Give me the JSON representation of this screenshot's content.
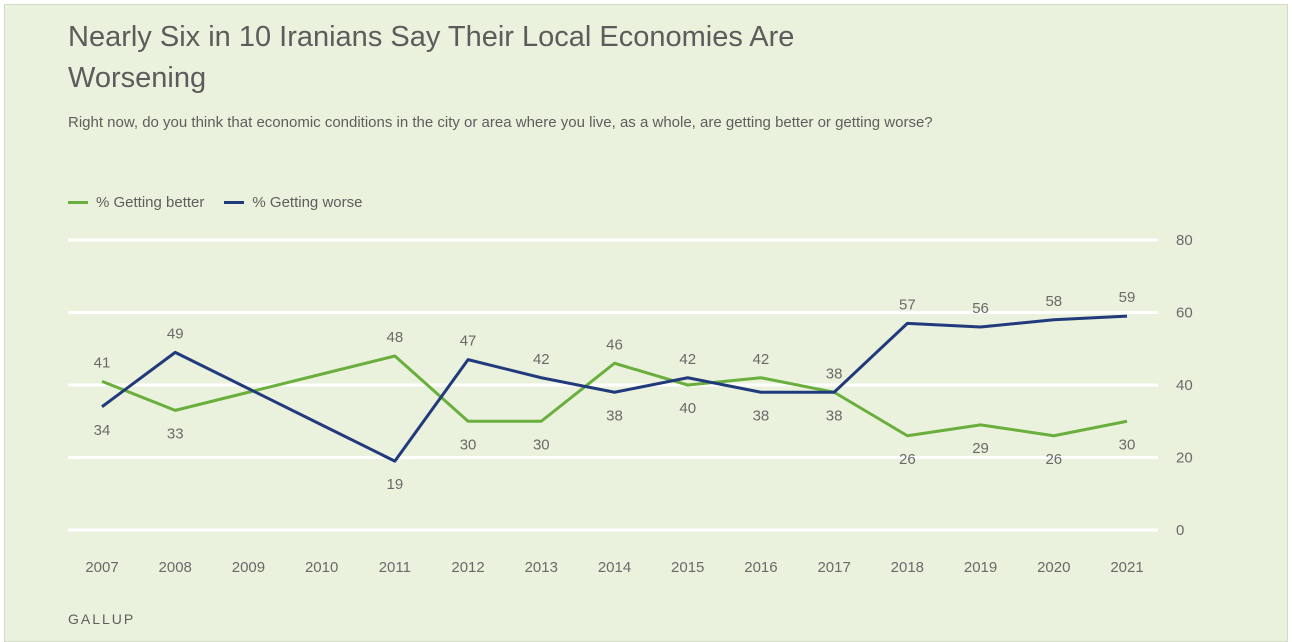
{
  "title": "Nearly Six in 10 Iranians Say Their Local Economies Are Worsening",
  "subtitle": "Right now, do you think that economic conditions in the city or area where you live, as a whole, are getting better or getting worse?",
  "source": "GALLUP",
  "colors": {
    "better": "#6aaf3d",
    "worse": "#213a7c",
    "grid": "#ffffff",
    "background": "#eaf1dc"
  },
  "chart_data": {
    "type": "line",
    "title": "Nearly Six in 10 Iranians Say Their Local Economies Are Worsening",
    "x": [
      "2007",
      "2008",
      "2009",
      "2010",
      "2011",
      "2012",
      "2013",
      "2014",
      "2015",
      "2016",
      "2017",
      "2018",
      "2019",
      "2020",
      "2021"
    ],
    "ylim": [
      0,
      80
    ],
    "yticks": [
      0,
      20,
      40,
      60,
      80
    ],
    "y_axis_position": "right",
    "grid": true,
    "legend_position": "top-left",
    "series": [
      {
        "name": "% Getting better",
        "color": "#6aaf3d",
        "values": [
          41,
          33,
          null,
          null,
          48,
          30,
          30,
          46,
          40,
          42,
          38,
          26,
          29,
          26,
          30
        ],
        "line_values": [
          41,
          33,
          38,
          43,
          48,
          30,
          30,
          46,
          40,
          42,
          38,
          26,
          29,
          26,
          30
        ]
      },
      {
        "name": "% Getting worse",
        "color": "#213a7c",
        "values": [
          34,
          49,
          null,
          null,
          19,
          47,
          42,
          38,
          42,
          38,
          38,
          57,
          56,
          58,
          59
        ],
        "line_values": [
          34,
          49,
          39,
          29,
          19,
          47,
          42,
          38,
          42,
          38,
          38,
          57,
          56,
          58,
          59
        ]
      }
    ]
  }
}
